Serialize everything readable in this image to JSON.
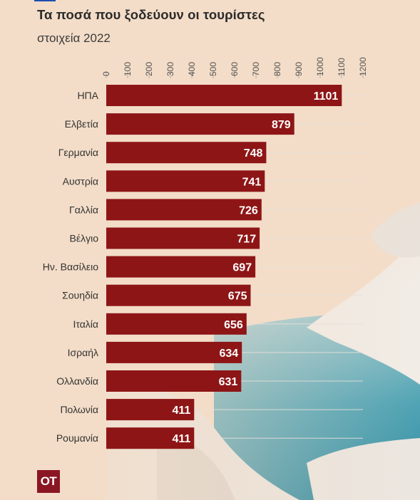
{
  "header": {
    "title": "Τα ποσά που ξοδεύουν οι τουρίστες",
    "subtitle": "στοιχεία 2022"
  },
  "logo": {
    "text": "ΟΤ"
  },
  "colors": {
    "bar": "#8e1516",
    "grid": "#e6e0da",
    "background": "#f3ddc8"
  },
  "chart_data": {
    "type": "bar",
    "orientation": "horizontal",
    "title": "Τα ποσά που ξοδεύουν οι τουρίστες",
    "subtitle": "στοιχεία 2022",
    "categories": [
      "ΗΠΑ",
      "Ελβετία",
      "Γερμανία",
      "Αυστρία",
      "Γαλλία",
      "Βέλγιο",
      "Ην. Βασίλειο",
      "Σουηδία",
      "Ιταλία",
      "Ισραήλ",
      "Ολλανδία",
      "Πολωνία",
      "Ρουμανία"
    ],
    "values": [
      1101,
      879,
      748,
      741,
      726,
      717,
      697,
      675,
      656,
      634,
      631,
      411,
      411
    ],
    "xlim": [
      0,
      1200
    ],
    "ticks": [
      0,
      100,
      200,
      300,
      400,
      500,
      600,
      700,
      800,
      900,
      1000,
      1100,
      1200
    ],
    "axis_position": "top",
    "data_labels": true,
    "grid": true
  }
}
